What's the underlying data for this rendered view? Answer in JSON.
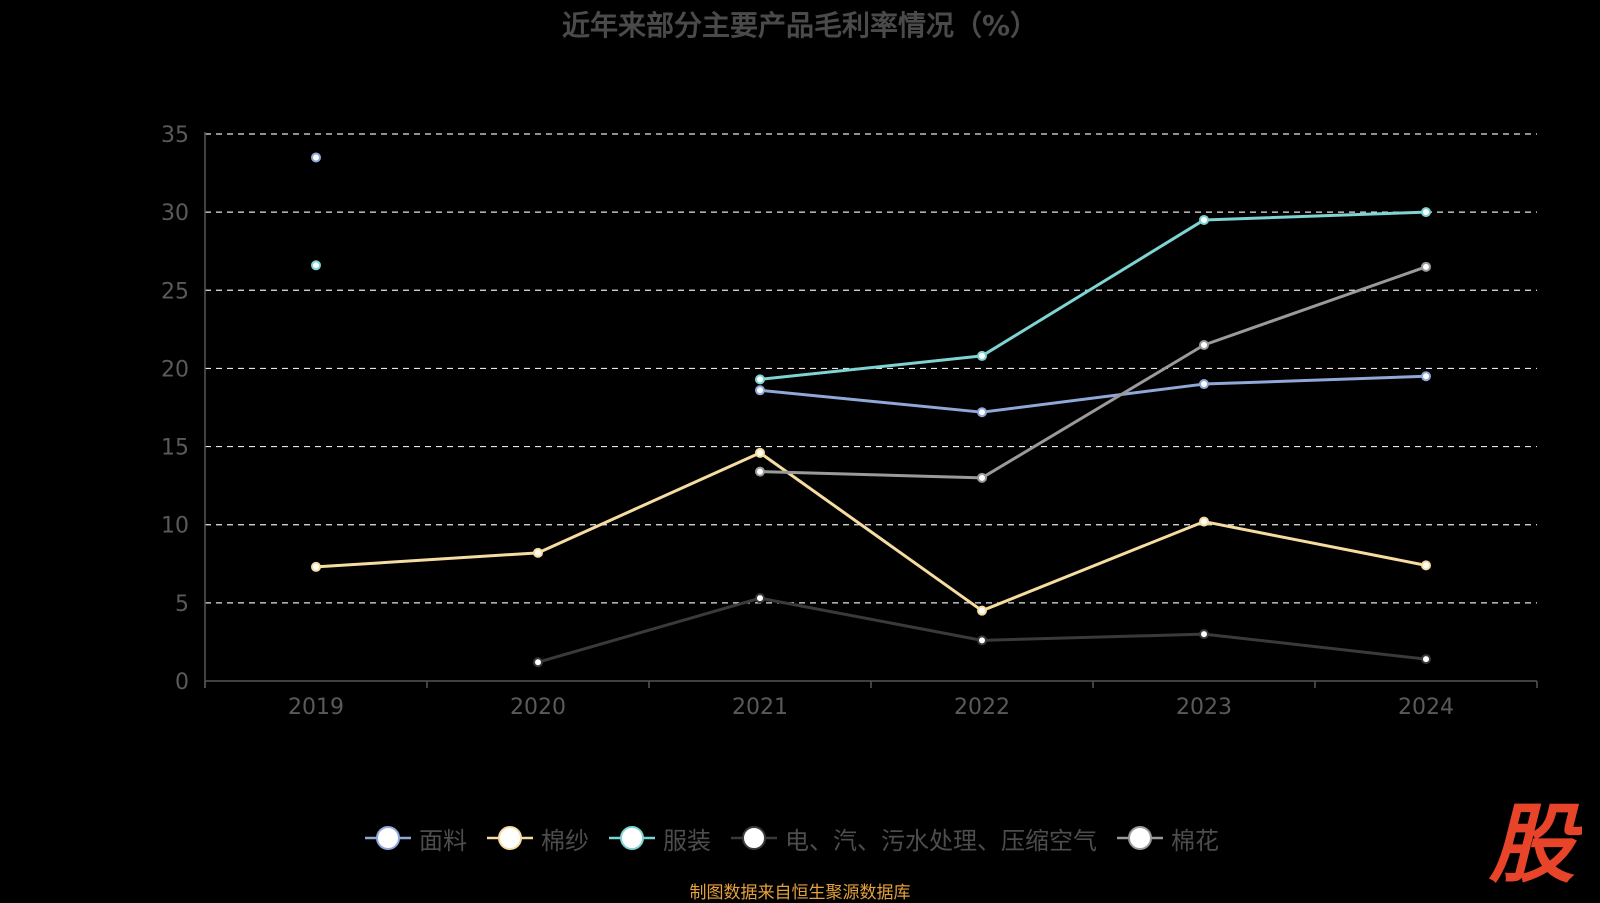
{
  "title": "近年来部分主要产品毛利率情况（%）",
  "source": "制图数据来自恒生聚源数据库",
  "logo": {
    "text": "股",
    "color": "#e8442a"
  },
  "colors": {
    "background": "#000000",
    "axis": "#555555",
    "grid": "#ffffff",
    "tick_text": "#5a5a5a"
  },
  "chart_data": {
    "type": "line",
    "title": "近年来部分主要产品毛利率情况（%）",
    "xlabel": "",
    "ylabel": "",
    "categories": [
      "2019",
      "2020",
      "2021",
      "2022",
      "2023",
      "2024"
    ],
    "ylim": [
      0,
      35
    ],
    "yticks": [
      0,
      5,
      10,
      15,
      20,
      25,
      30,
      35
    ],
    "grid": true,
    "legend_position": "bottom",
    "series": [
      {
        "name": "面料",
        "color": "#8fa8d8",
        "values": [
          33.5,
          null,
          18.6,
          17.2,
          19.0,
          19.5
        ]
      },
      {
        "name": "棉纱",
        "color": "#f6dca0",
        "values": [
          7.3,
          8.2,
          14.6,
          4.5,
          10.2,
          7.4
        ]
      },
      {
        "name": "服装",
        "color": "#7ed3d3",
        "values": [
          26.6,
          null,
          19.3,
          20.8,
          29.5,
          30.0
        ]
      },
      {
        "name": "电、汽、污水处理、压缩空气",
        "color": "#3a3a3a",
        "values": [
          null,
          1.2,
          5.3,
          2.6,
          3.0,
          1.4
        ]
      },
      {
        "name": "棉花",
        "color": "#9a9a9a",
        "values": [
          null,
          null,
          13.4,
          13.0,
          21.5,
          26.5
        ]
      }
    ]
  }
}
